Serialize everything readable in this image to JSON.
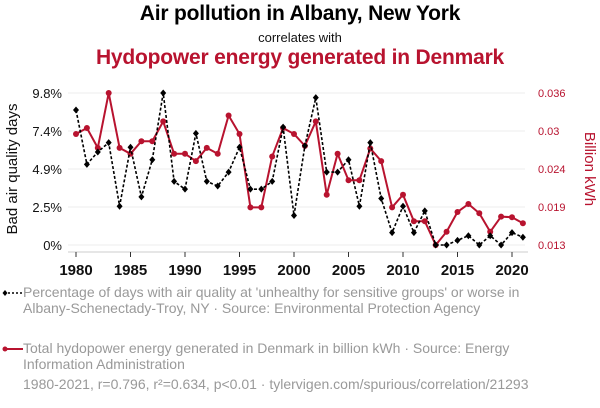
{
  "header": {
    "title": "Air pollution in Albany, New York",
    "subtitle": "correlates with",
    "title2": "Hydopower energy generated in Denmark"
  },
  "colors": {
    "series1": "#000000",
    "series2": "#b8132f",
    "grid": "#eeeeee",
    "legend_text": "#999999"
  },
  "legend": {
    "series1_text": "Percentage of days with air quality at 'unhealthy for sensitive groups' or worse in Albany-Schenectady-Troy, NY · Source: Environmental Protection Agency",
    "series2_text": "Total hydopower energy generated in Denmark in billion kWh · Source: Energy Information Administration"
  },
  "footer": {
    "stats": "1980-2021, r=0.796, r²=0.634, p<0.01 · tylervigen.com/spurious/correlation/21293"
  },
  "chart_data": {
    "type": "line",
    "title": "Air pollution in Albany, New York correlates with Hydopower energy generated in Denmark",
    "x": [
      1980,
      1981,
      1982,
      1983,
      1984,
      1985,
      1986,
      1987,
      1988,
      1989,
      1990,
      1991,
      1992,
      1993,
      1994,
      1995,
      1996,
      1997,
      1998,
      1999,
      2000,
      2001,
      2002,
      2003,
      2004,
      2005,
      2006,
      2007,
      2008,
      2009,
      2010,
      2011,
      2012,
      2013,
      2014,
      2015,
      2016,
      2017,
      2018,
      2019,
      2020,
      2021
    ],
    "xlabel": "",
    "xticks": [
      "1980",
      "1985",
      "1990",
      "1995",
      "2000",
      "2005",
      "2010",
      "2015",
      "2020"
    ],
    "xlim": [
      1979.5,
      2021.7
    ],
    "grid": true,
    "legend_position": "bottom",
    "series": [
      {
        "name": "Percentage of days with air quality at 'unhealthy for sensitive groups' or worse in Albany-Schenectady-Troy, NY",
        "axis": "left",
        "style": "dashed",
        "marker": "diamond",
        "color": "#000000",
        "values": [
          8.7,
          5.2,
          6.0,
          6.6,
          2.5,
          6.3,
          3.1,
          5.5,
          9.8,
          4.1,
          3.6,
          7.2,
          4.1,
          3.8,
          4.7,
          6.3,
          3.6,
          3.6,
          4.1,
          7.6,
          1.9,
          6.4,
          9.5,
          4.7,
          4.7,
          5.5,
          2.5,
          6.6,
          3.0,
          0.8,
          2.5,
          0.8,
          2.2,
          0.0,
          0.0,
          0.3,
          0.6,
          0.0,
          0.6,
          0.0,
          0.8,
          0.5
        ]
      },
      {
        "name": "Total hydopower energy generated in Denmark in billion kWh",
        "axis": "right",
        "style": "solid",
        "marker": "circle",
        "color": "#b8132f",
        "values": [
          0.0298,
          0.0307,
          0.0277,
          0.036,
          0.0277,
          0.0268,
          0.0287,
          0.0287,
          0.0317,
          0.0268,
          0.0268,
          0.0257,
          0.0277,
          0.0268,
          0.0326,
          0.0298,
          0.0187,
          0.0187,
          0.0264,
          0.0307,
          0.0298,
          0.028,
          0.0317,
          0.0206,
          0.0268,
          0.0228,
          0.0228,
          0.0276,
          0.0257,
          0.0187,
          0.0206,
          0.0166,
          0.0166,
          0.013,
          0.015,
          0.018,
          0.0192,
          0.0178,
          0.015,
          0.0173,
          0.0172,
          0.0163
        ]
      }
    ],
    "y_left": {
      "label": "Bad air quality days",
      "ticks": [
        "0%",
        "2.5%",
        "4.9%",
        "7.4%",
        "9.8%"
      ],
      "tick_values": [
        0,
        2.45,
        4.9,
        7.35,
        9.8
      ],
      "ylim": [
        0,
        9.8
      ]
    },
    "y_right": {
      "label": "Billion kWh",
      "ticks": [
        "0.013",
        "0.019",
        "0.024",
        "0.03",
        "0.036"
      ],
      "tick_values": [
        0.013,
        0.01875,
        0.0245,
        0.03025,
        0.036
      ],
      "ylim": [
        0.013,
        0.036
      ]
    }
  }
}
